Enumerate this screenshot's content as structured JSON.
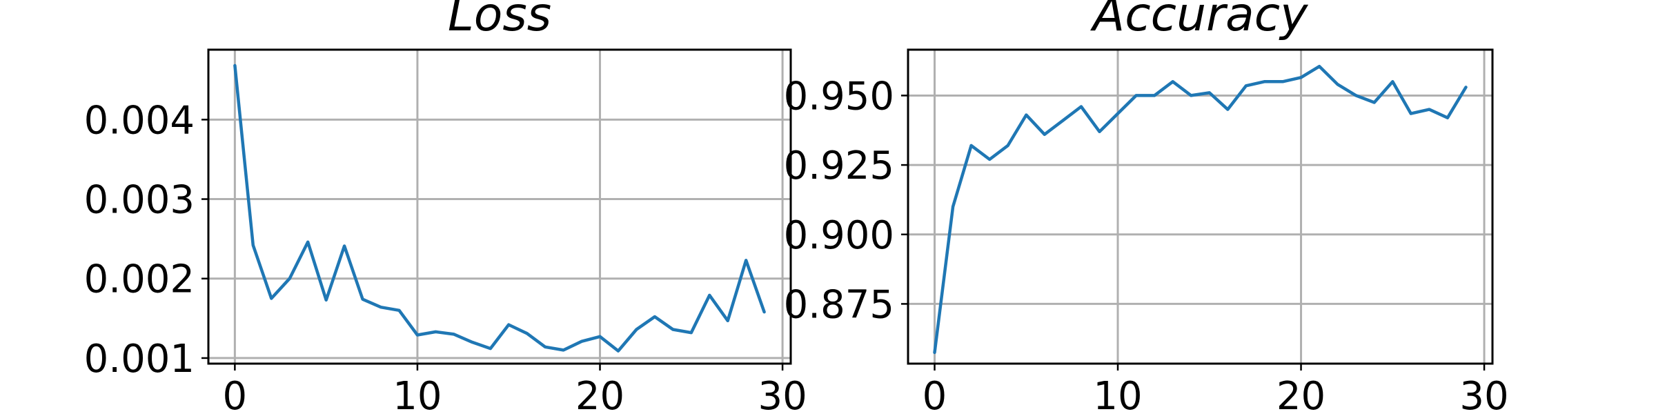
{
  "figure": {
    "background": "#ffffff",
    "line_color": "#1f77b4",
    "grid_color": "#b0b0b0"
  },
  "chart_data": [
    {
      "type": "line",
      "title": "Loss",
      "xlabel": "",
      "ylabel": "",
      "grid": true,
      "xlim": [
        -1.45,
        30.45
      ],
      "ylim": [
        0.00093,
        0.00488
      ],
      "xticks": [
        0,
        10,
        20,
        30
      ],
      "yticks": [
        0.001,
        0.002,
        0.003,
        0.004
      ],
      "ytick_labels": [
        "0.001",
        "0.002",
        "0.003",
        "0.004"
      ],
      "xtick_labels": [
        "0",
        "10",
        "20",
        "30"
      ],
      "series": [
        {
          "color": "#1f77b4",
          "x": [
            0,
            1,
            2,
            3,
            4,
            5,
            6,
            7,
            8,
            9,
            10,
            11,
            12,
            13,
            14,
            15,
            16,
            17,
            18,
            19,
            20,
            21,
            22,
            23,
            24,
            25,
            26,
            27,
            28,
            29
          ],
          "y": [
            0.00468,
            0.00242,
            0.00175,
            0.002,
            0.00246,
            0.00173,
            0.00241,
            0.00174,
            0.00164,
            0.0016,
            0.00129,
            0.00133,
            0.0013,
            0.0012,
            0.00112,
            0.00142,
            0.00131,
            0.00114,
            0.0011,
            0.00121,
            0.00127,
            0.00109,
            0.00136,
            0.00152,
            0.00136,
            0.00132,
            0.00179,
            0.00147,
            0.00223,
            0.00158
          ]
        }
      ]
    },
    {
      "type": "line",
      "title": "Accuracy",
      "xlabel": "",
      "ylabel": "",
      "grid": true,
      "xlim": [
        -1.45,
        30.45
      ],
      "ylim": [
        0.8535,
        0.9665
      ],
      "xticks": [
        0,
        10,
        20,
        30
      ],
      "yticks": [
        0.875,
        0.9,
        0.925,
        0.95
      ],
      "ytick_labels": [
        "0.875",
        "0.900",
        "0.925",
        "0.950"
      ],
      "xtick_labels": [
        "0",
        "10",
        "20",
        "30"
      ],
      "series": [
        {
          "color": "#1f77b4",
          "x": [
            0,
            1,
            2,
            3,
            4,
            5,
            6,
            7,
            8,
            9,
            10,
            11,
            12,
            13,
            14,
            15,
            16,
            17,
            18,
            19,
            20,
            21,
            22,
            23,
            24,
            25,
            26,
            27,
            28,
            29
          ],
          "y": [
            0.8575,
            0.91,
            0.932,
            0.927,
            0.932,
            0.943,
            0.936,
            0.941,
            0.946,
            0.937,
            0.9435,
            0.95,
            0.95,
            0.955,
            0.95,
            0.951,
            0.945,
            0.9535,
            0.955,
            0.955,
            0.9565,
            0.9605,
            0.954,
            0.95,
            0.9475,
            0.955,
            0.9435,
            0.945,
            0.942,
            0.953
          ]
        }
      ]
    }
  ]
}
